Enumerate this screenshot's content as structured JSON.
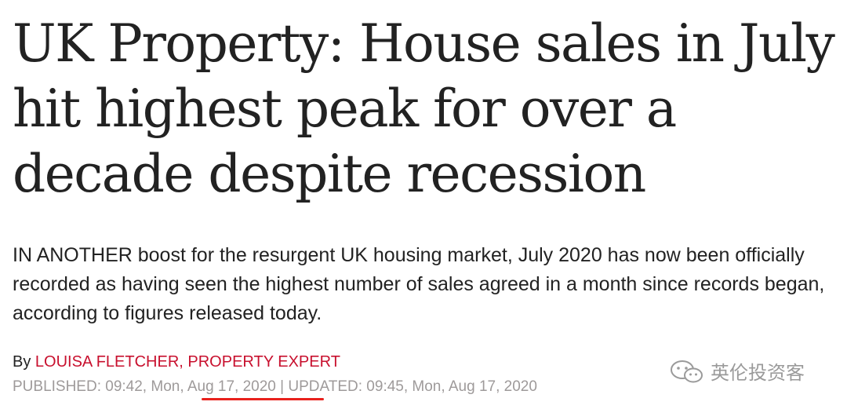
{
  "article": {
    "headline": "UK Property: House sales in July hit highest peak for over a decade despite recession",
    "standfirst": "IN ANOTHER boost for the resurgent UK housing market, July 2020 has now been officially recorded as having seen the highest number of sales agreed in a month since records began, according to figures released today.",
    "byline_prefix": "By ",
    "author": "LOUISA FLETCHER, PROPERTY EXPERT",
    "published": "PUBLISHED: 09:42, Mon, Aug 17, 2020 | UPDATED: 09:45, Mon, Aug 17, 2020"
  },
  "watermark": {
    "text": "英伦投资客",
    "icon": "wechat-icon"
  },
  "colors": {
    "author": "#c8102e",
    "dates": "#9e9a9a",
    "underline": "#e8211d"
  }
}
